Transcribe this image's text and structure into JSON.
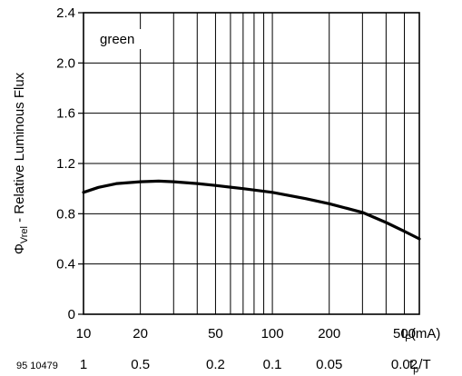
{
  "chart_data": {
    "type": "line",
    "title": "",
    "legend": "green",
    "ylabel": {
      "symbol": "Φ",
      "subscript": "Vrel",
      "text": " - Relative Luminous Flux"
    },
    "xlabel_primary": {
      "symbol": "I",
      "subscript": "F",
      "unit": "(mA)"
    },
    "xlabel_secondary": {
      "symbol": "t",
      "subscript": "p",
      "suffix": "/T"
    },
    "document_id": "95 10479",
    "x_scale": "log",
    "xlim": [
      10,
      600
    ],
    "ylim": [
      0,
      2.4
    ],
    "grid": true,
    "y_ticks": [
      0,
      0.4,
      0.8,
      1.2,
      1.6,
      2.0,
      2.4
    ],
    "y_tick_labels": [
      "0",
      "0.4",
      "0.8",
      "1.2",
      "1.6",
      "2.0",
      "2.4"
    ],
    "x_minor_grid": [
      30,
      40,
      60,
      70,
      80,
      90,
      300,
      400
    ],
    "x_ticks": [
      10,
      20,
      50,
      100,
      200,
      500
    ],
    "x_tick_labels": [
      "10",
      "20",
      "50",
      "100",
      "200",
      "500"
    ],
    "x2_tick_labels": [
      "1",
      "0.5",
      "0.2",
      "0.1",
      "0.05",
      "0.02"
    ],
    "series": [
      {
        "x": [
          10,
          12,
          15,
          20,
          25,
          30,
          40,
          50,
          70,
          100,
          150,
          200,
          300,
          400,
          500,
          600
        ],
        "values": [
          0.97,
          1.01,
          1.04,
          1.055,
          1.06,
          1.055,
          1.04,
          1.025,
          1.0,
          0.97,
          0.92,
          0.88,
          0.81,
          0.73,
          0.66,
          0.6
        ]
      }
    ]
  }
}
